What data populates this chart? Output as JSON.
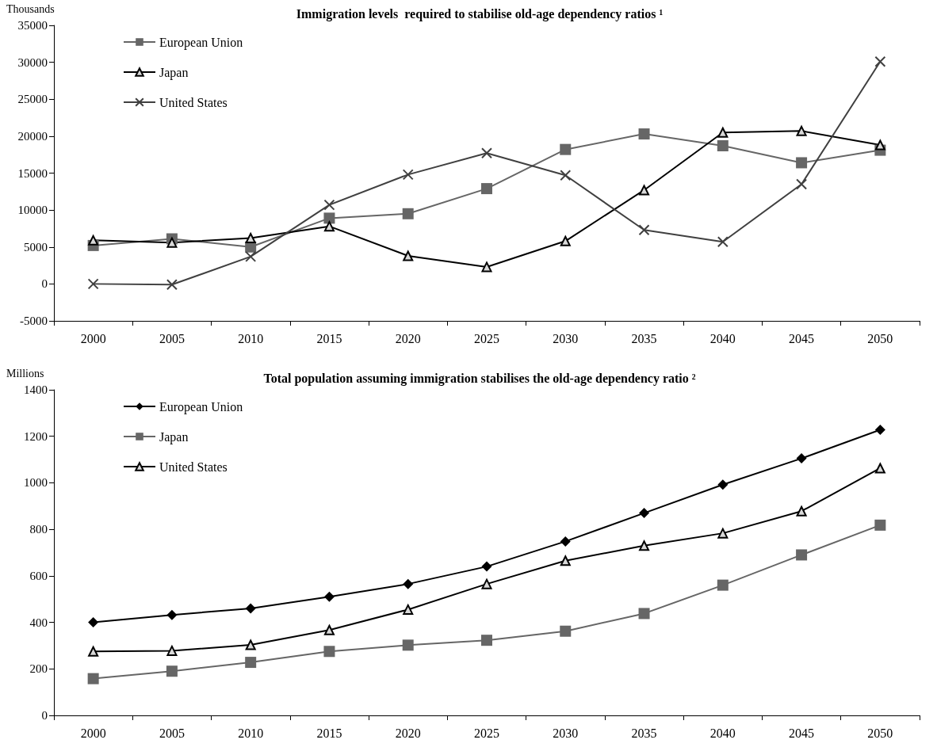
{
  "chart_data": [
    {
      "type": "line",
      "title": "Immigration levels  required to stabilise old-age dependency ratios ¹",
      "ylabel": "Thousands",
      "categories": [
        "2000",
        "2005",
        "2010",
        "2015",
        "2020",
        "2025",
        "2030",
        "2035",
        "2040",
        "2045",
        "2050"
      ],
      "ylim": [
        -5000,
        35000
      ],
      "yticks": [
        -5000,
        0,
        5000,
        10000,
        15000,
        20000,
        25000,
        30000,
        35000
      ],
      "grid": false,
      "legend": "top left",
      "series": [
        {
          "name": "European Union",
          "color": "#666666",
          "marker": "square",
          "values": [
            5200,
            6100,
            5000,
            8900,
            9500,
            12900,
            18200,
            20300,
            18700,
            16400,
            18100
          ]
        },
        {
          "name": "Japan",
          "color": "#000000",
          "marker": "triangle",
          "values": [
            5900,
            5600,
            6200,
            7800,
            3800,
            2300,
            5800,
            12700,
            20500,
            20700,
            18800
          ]
        },
        {
          "name": "United States",
          "color": "#404040",
          "marker": "cross",
          "values": [
            0,
            -100,
            3700,
            10700,
            14800,
            17700,
            14700,
            7300,
            5700,
            13500,
            30100
          ]
        }
      ]
    },
    {
      "type": "line",
      "title": "Total population assuming immigration stabilises the old-age dependency ratio ²",
      "ylabel": "Millions",
      "categories": [
        "2000",
        "2005",
        "2010",
        "2015",
        "2020",
        "2025",
        "2030",
        "2035",
        "2040",
        "2045",
        "2050"
      ],
      "ylim": [
        0,
        1400
      ],
      "yticks": [
        0,
        200,
        400,
        600,
        800,
        1000,
        1200,
        1400
      ],
      "grid": false,
      "legend": "top left",
      "series": [
        {
          "name": "European Union",
          "color": "#000000",
          "marker": "diamond",
          "values": [
            400,
            432,
            460,
            510,
            565,
            640,
            748,
            870,
            992,
            1105,
            1228
          ]
        },
        {
          "name": "Japan",
          "color": "#666666",
          "marker": "square",
          "values": [
            158,
            190,
            228,
            275,
            302,
            323,
            362,
            438,
            560,
            690,
            818
          ]
        },
        {
          "name": "United States",
          "color": "#000000",
          "marker": "triangle",
          "values": [
            275,
            278,
            303,
            367,
            455,
            565,
            665,
            730,
            783,
            878,
            1063
          ]
        }
      ]
    }
  ]
}
